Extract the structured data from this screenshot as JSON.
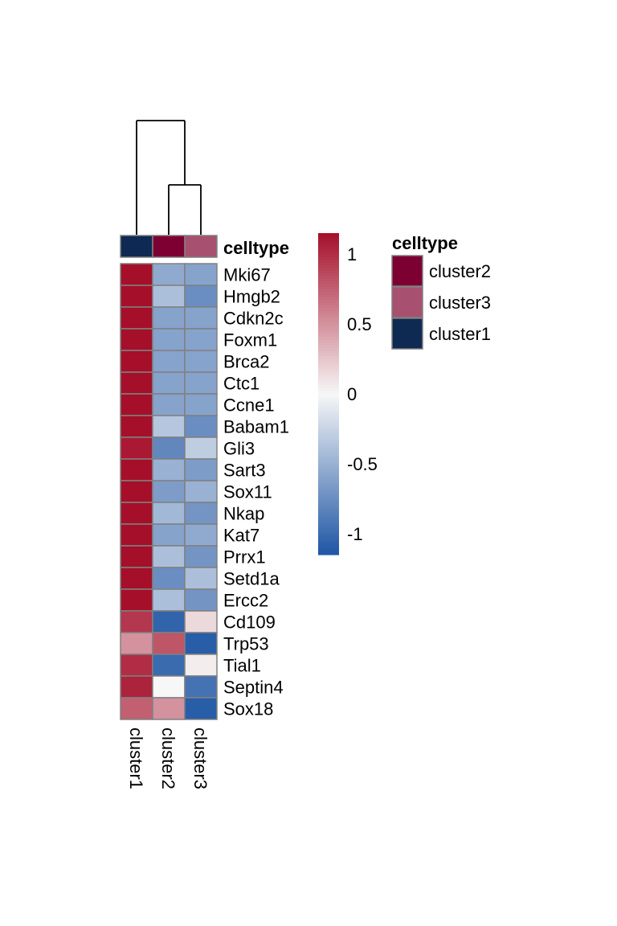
{
  "chart_data": {
    "type": "heatmap",
    "columns": [
      "cluster1",
      "cluster2",
      "cluster3"
    ],
    "rows": [
      "Mki67",
      "Hmgb2",
      "Cdkn2c",
      "Foxm1",
      "Brca2",
      "Ctc1",
      "Ccne1",
      "Babam1",
      "Gli3",
      "Sart3",
      "Sox11",
      "Nkap",
      "Kat7",
      "Prrx1",
      "Setd1a",
      "Ercc2",
      "Cd109",
      "Trp53",
      "Tial1",
      "Septin4",
      "Sox18"
    ],
    "values": [
      [
        1.15,
        -0.55,
        -0.6
      ],
      [
        1.15,
        -0.4,
        -0.75
      ],
      [
        1.15,
        -0.6,
        -0.6
      ],
      [
        1.15,
        -0.6,
        -0.6
      ],
      [
        1.15,
        -0.6,
        -0.6
      ],
      [
        1.15,
        -0.6,
        -0.6
      ],
      [
        1.15,
        -0.6,
        -0.6
      ],
      [
        1.15,
        -0.35,
        -0.75
      ],
      [
        1.1,
        -0.8,
        -0.3
      ],
      [
        1.15,
        -0.5,
        -0.65
      ],
      [
        1.15,
        -0.65,
        -0.5
      ],
      [
        1.15,
        -0.45,
        -0.7
      ],
      [
        1.15,
        -0.6,
        -0.55
      ],
      [
        1.15,
        -0.4,
        -0.7
      ],
      [
        1.15,
        -0.75,
        -0.4
      ],
      [
        1.15,
        -0.4,
        -0.7
      ],
      [
        0.95,
        -1.05,
        0.15
      ],
      [
        0.5,
        0.8,
        -1.1
      ],
      [
        1.0,
        -1.0,
        0.05
      ],
      [
        1.05,
        0.0,
        -0.95
      ],
      [
        0.75,
        0.5,
        -1.1
      ]
    ],
    "colorbar": {
      "ticks": [
        1,
        0.5,
        0,
        -0.5,
        -1
      ],
      "tick_labels": [
        "1",
        "0.5",
        "0",
        "-0.5",
        "-1"
      ],
      "range": [
        -1.15,
        1.15
      ]
    },
    "colors": {
      "high": "#a50f2a",
      "mid": "#f7f7f7",
      "low": "#1f56a4",
      "cell_border": "#808080"
    },
    "annotation": {
      "title": "celltype",
      "column_values": [
        "cluster1",
        "cluster2",
        "cluster3"
      ],
      "legend": [
        {
          "label": "cluster2",
          "color": "#7d0033"
        },
        {
          "label": "cluster3",
          "color": "#a8506f"
        },
        {
          "label": "cluster1",
          "color": "#0e2a52"
        }
      ]
    },
    "dendrogram": {
      "merges": [
        [
          "cluster2",
          "cluster3"
        ],
        [
          "cluster1",
          "cluster2+cluster3"
        ]
      ]
    }
  }
}
